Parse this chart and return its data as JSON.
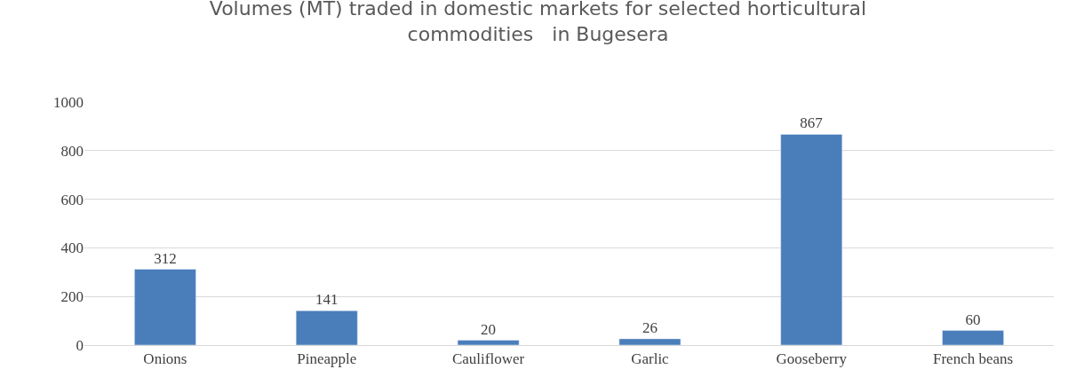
{
  "chart_data": {
    "type": "bar",
    "title": "Volumes (MT) traded in domestic markets for selected horticultural\ncommodities   in Bugesera",
    "categories": [
      "Onions",
      "Pineapple",
      "Cauliflower",
      "Garlic",
      "Gooseberry",
      "French beans"
    ],
    "values": [
      312,
      141,
      20,
      26,
      867,
      60
    ],
    "color": "#4a7ebb",
    "ylim": [
      0,
      1000
    ],
    "yticks": [
      0,
      200,
      400,
      600,
      800,
      1000
    ],
    "grid": "y",
    "data_labels": true,
    "legend": false
  }
}
